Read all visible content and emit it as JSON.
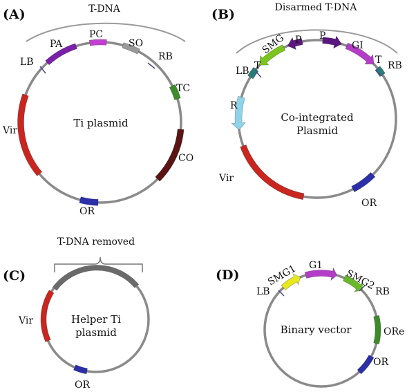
{
  "panels": {
    "a": {
      "label": "(A)",
      "bracket_label": "T-DNA",
      "center_label": "Ti plasmid",
      "segments": {
        "pa": {
          "name": "PA",
          "color": "#7a1fa8"
        },
        "pc": {
          "name": "PC",
          "color": "#c23fd0"
        },
        "so": {
          "name": "SO",
          "color": "#9a9a9a"
        },
        "tc": {
          "name": "TC",
          "color": "#3d8c2a"
        },
        "co": {
          "name": "CO",
          "color": "#5a1414"
        },
        "or": {
          "name": "OR",
          "color": "#2b2fa8"
        },
        "vir": {
          "name": "Vir",
          "color": "#c8261f"
        }
      },
      "borders": {
        "lb": "LB",
        "rb": "RB"
      }
    },
    "b": {
      "label": "(B)",
      "bracket_label": "Disarmed T-DNA",
      "center_label_1": "Co-integrated",
      "center_label_2": "Plasmid",
      "segments": {
        "t_left": {
          "name": "T",
          "color": "#2a7b7b"
        },
        "smg": {
          "name": "SMG",
          "color": "#7cc41e"
        },
        "p1": {
          "name": "P",
          "color": "#5b1780"
        },
        "p2": {
          "name": "P",
          "color": "#5b1780"
        },
        "gi": {
          "name": "GI",
          "color": "#b33dc7"
        },
        "t_right": {
          "name": "T",
          "color": "#2a7b7b"
        },
        "r": {
          "name": "R",
          "color": "#8fd3ea"
        },
        "vir": {
          "name": "Vir",
          "color": "#c8261f"
        },
        "or": {
          "name": "OR",
          "color": "#2b2fa8"
        }
      },
      "borders": {
        "lb": "LB",
        "rb": "RB"
      }
    },
    "c": {
      "label": "(C)",
      "bracket_label": "T-DNA removed",
      "center_label_1": "Helper Ti",
      "center_label_2": "plasmid",
      "segments": {
        "vir": {
          "name": "Vir",
          "color": "#c8261f"
        },
        "or": {
          "name": "OR",
          "color": "#2b2fa8"
        }
      }
    },
    "d": {
      "label": "(D)",
      "center_label": "Binary vector",
      "segments": {
        "smg1": {
          "name": "SMG1",
          "color": "#e8e81e"
        },
        "g1": {
          "name": "G1",
          "color": "#b33dc7"
        },
        "smg2": {
          "name": "SMG2",
          "color": "#6ab82a"
        },
        "ore": {
          "name": "ORe",
          "color": "#3d8c2a"
        },
        "or": {
          "name": "OR",
          "color": "#2b2fa8"
        }
      },
      "borders": {
        "lb": "LB",
        "rb": "RB"
      }
    }
  }
}
